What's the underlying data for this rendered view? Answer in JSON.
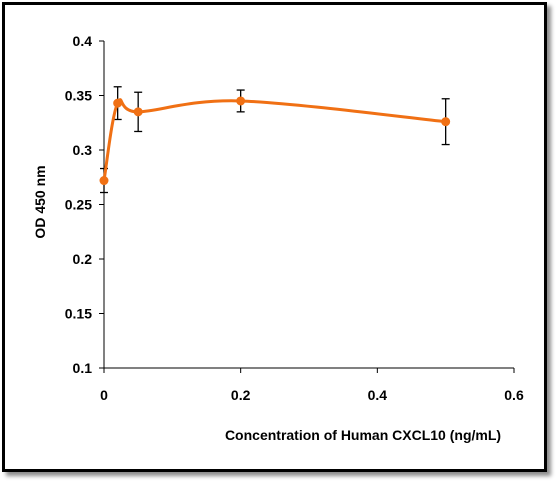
{
  "chart_data": {
    "type": "line",
    "title": "",
    "xlabel": "Concentration of Human CXCL10 (ng/mL)",
    "ylabel": "OD 450 nm",
    "xlim": [
      0,
      0.6
    ],
    "ylim": [
      0.1,
      0.4
    ],
    "x_ticks": [
      "0",
      "0.2",
      "0.4",
      "0.6"
    ],
    "y_ticks": [
      "0.1",
      "0.15",
      "0.2",
      "0.25",
      "0.3",
      "0.35",
      "0.4"
    ],
    "grid": false,
    "legend": "none",
    "series": [
      {
        "color": "#F07014",
        "points": [
          {
            "x": 0.0,
            "y": 0.272,
            "err": 0.011
          },
          {
            "x": 0.02,
            "y": 0.343,
            "err": 0.015
          },
          {
            "x": 0.05,
            "y": 0.335,
            "err": 0.018
          },
          {
            "x": 0.2,
            "y": 0.345,
            "err": 0.01
          },
          {
            "x": 0.5,
            "y": 0.326,
            "err": 0.021
          }
        ]
      }
    ]
  }
}
